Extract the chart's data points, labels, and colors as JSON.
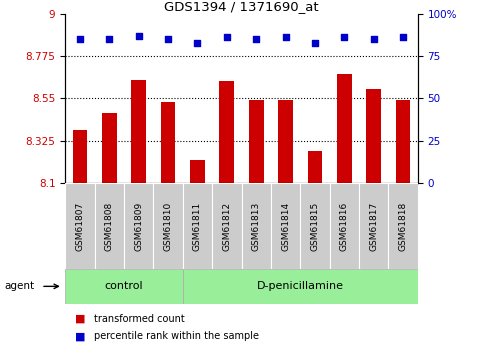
{
  "title": "GDS1394 / 1371690_at",
  "categories": [
    "GSM61807",
    "GSM61808",
    "GSM61809",
    "GSM61810",
    "GSM61811",
    "GSM61812",
    "GSM61813",
    "GSM61814",
    "GSM61815",
    "GSM61816",
    "GSM61817",
    "GSM61818"
  ],
  "bar_values": [
    8.38,
    8.47,
    8.65,
    8.53,
    8.22,
    8.64,
    8.54,
    8.54,
    8.27,
    8.68,
    8.6,
    8.54
  ],
  "percentile_values": [
    85,
    85,
    87,
    85,
    83,
    86,
    85,
    86,
    83,
    86,
    85,
    86
  ],
  "bar_color": "#cc0000",
  "dot_color": "#0000cc",
  "ylim_left": [
    8.1,
    9.0
  ],
  "yticks_left": [
    8.1,
    8.325,
    8.55,
    8.775,
    9
  ],
  "ytick_labels_left": [
    "8.1",
    "8.325",
    "8.55",
    "8.775",
    "9"
  ],
  "ylim_right": [
    0,
    100
  ],
  "yticks_right": [
    0,
    25,
    50,
    75,
    100
  ],
  "ytick_labels_right": [
    "0",
    "25",
    "50",
    "75",
    "100%"
  ],
  "control_label": "control",
  "treatment_label": "D-penicillamine",
  "agent_label": "agent",
  "legend_bar_label": "transformed count",
  "legend_dot_label": "percentile rank within the sample",
  "group_bg_color": "#99ee99",
  "tick_label_bg": "#cccccc",
  "dotted_line_color": "#000000",
  "bar_width": 0.5,
  "n_control": 4,
  "n_treatment": 8
}
